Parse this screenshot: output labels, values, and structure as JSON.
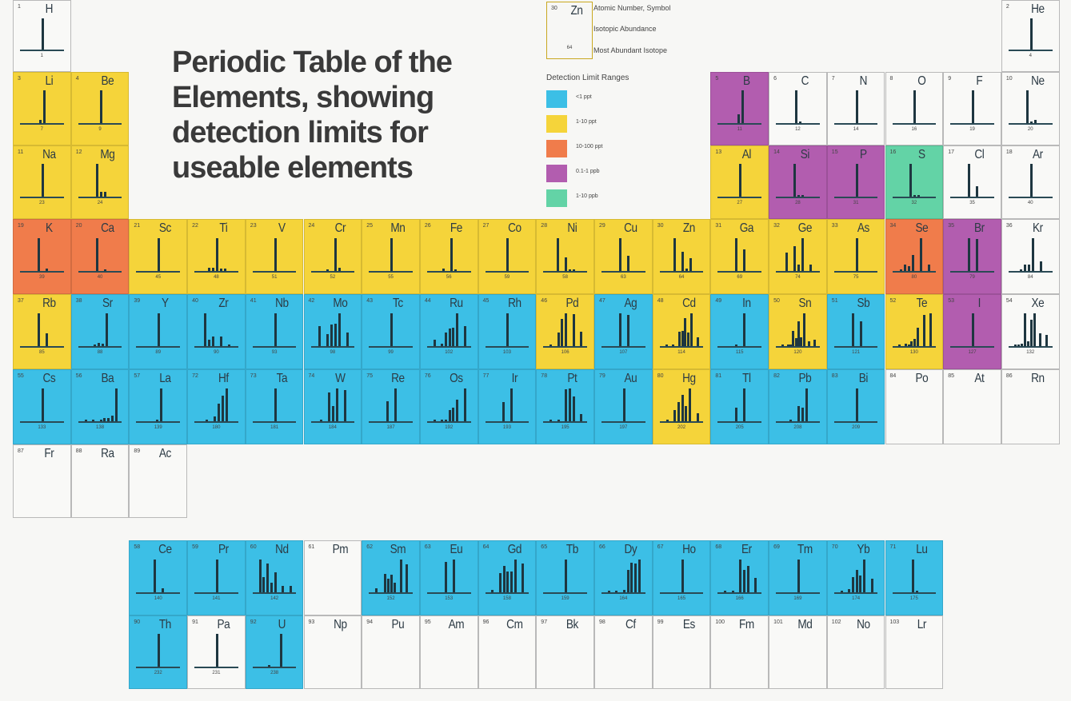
{
  "title": "Periodic Table of the Elements, showing detection limits for useable elements",
  "legend": {
    "key_example": {
      "number": "30",
      "symbol": "Zn",
      "mass": "64",
      "color": "y"
    },
    "key_labels": [
      "Atomic Number, Symbol",
      "Isotopic Abundance",
      "Most Abundant Isotope"
    ],
    "ranges_title": "Detection Limit Ranges",
    "ranges": [
      {
        "label": "<1 ppt",
        "color": "#3cbfe6"
      },
      {
        "label": "1-10 ppt",
        "color": "#f5d43a"
      },
      {
        "label": "10-100 ppt",
        "color": "#f07c4b"
      },
      {
        "label": "0.1-1 ppb",
        "color": "#b25daf"
      },
      {
        "label": "1-10 ppb",
        "color": "#63d3a6"
      }
    ]
  },
  "colors": {
    "b": "#3cbfe6",
    "y": "#f5d43a",
    "o": "#f07c4b",
    "p": "#b25daf",
    "g": "#63d3a6",
    "w": "#f9f9f7"
  },
  "elements": [
    {
      "z": "1",
      "symbol": "H",
      "mass": "1",
      "c": "w",
      "p": 1,
      "g": 1,
      "peaks": [
        1
      ]
    },
    {
      "z": "2",
      "symbol": "He",
      "mass": "4",
      "c": "w",
      "p": 1,
      "g": 18,
      "peaks": [
        1
      ]
    },
    {
      "z": "3",
      "symbol": "Li",
      "mass": "7",
      "c": "y",
      "p": 2,
      "g": 1,
      "peaks": [
        0.1,
        1
      ]
    },
    {
      "z": "4",
      "symbol": "Be",
      "mass": "9",
      "c": "y",
      "p": 2,
      "g": 2,
      "peaks": [
        1
      ]
    },
    {
      "z": "5",
      "symbol": "B",
      "mass": "11",
      "c": "p",
      "p": 2,
      "g": 13,
      "peaks": [
        0.25,
        1
      ]
    },
    {
      "z": "6",
      "symbol": "C",
      "mass": "12",
      "c": "w",
      "p": 2,
      "g": 14,
      "peaks": [
        1,
        0.02
      ]
    },
    {
      "z": "7",
      "symbol": "N",
      "mass": "14",
      "c": "w",
      "p": 2,
      "g": 15,
      "peaks": [
        1
      ]
    },
    {
      "z": "8",
      "symbol": "O",
      "mass": "16",
      "c": "w",
      "p": 2,
      "g": 16,
      "peaks": [
        1
      ]
    },
    {
      "z": "9",
      "symbol": "F",
      "mass": "19",
      "c": "w",
      "p": 2,
      "g": 17,
      "peaks": [
        1
      ]
    },
    {
      "z": "10",
      "symbol": "Ne",
      "mass": "20",
      "c": "w",
      "p": 2,
      "g": 18,
      "peaks": [
        1,
        0.02,
        0.1
      ]
    },
    {
      "z": "11",
      "symbol": "Na",
      "mass": "23",
      "c": "y",
      "p": 3,
      "g": 1,
      "peaks": [
        1
      ]
    },
    {
      "z": "12",
      "symbol": "Mg",
      "mass": "24",
      "c": "y",
      "p": 3,
      "g": 2,
      "peaks": [
        1,
        0.13,
        0.14
      ]
    },
    {
      "z": "13",
      "symbol": "Al",
      "mass": "27",
      "c": "y",
      "p": 3,
      "g": 13,
      "peaks": [
        1
      ]
    },
    {
      "z": "14",
      "symbol": "Si",
      "mass": "28",
      "c": "p",
      "p": 3,
      "g": 14,
      "peaks": [
        1,
        0.05,
        0.03
      ]
    },
    {
      "z": "15",
      "symbol": "P",
      "mass": "31",
      "c": "p",
      "p": 3,
      "g": 15,
      "peaks": [
        1
      ]
    },
    {
      "z": "16",
      "symbol": "S",
      "mass": "32",
      "c": "g",
      "p": 3,
      "g": 16,
      "peaks": [
        1,
        0.02,
        0.05
      ]
    },
    {
      "z": "17",
      "symbol": "Cl",
      "mass": "35",
      "c": "w",
      "p": 3,
      "g": 17,
      "peaks": [
        1,
        0,
        0.32
      ]
    },
    {
      "z": "18",
      "symbol": "Ar",
      "mass": "40",
      "c": "w",
      "p": 3,
      "g": 18,
      "peaks": [
        1
      ]
    },
    {
      "z": "19",
      "symbol": "K",
      "mass": "39",
      "c": "o",
      "p": 4,
      "g": 1,
      "peaks": [
        1,
        0,
        0.07
      ]
    },
    {
      "z": "20",
      "symbol": "Ca",
      "mass": "40",
      "c": "o",
      "p": 4,
      "g": 2,
      "peaks": [
        1,
        0,
        0.02
      ]
    },
    {
      "z": "21",
      "symbol": "Sc",
      "mass": "45",
      "c": "y",
      "p": 4,
      "g": 3,
      "peaks": [
        1
      ]
    },
    {
      "z": "22",
      "symbol": "Ti",
      "mass": "48",
      "c": "y",
      "p": 4,
      "g": 4,
      "peaks": [
        0.1,
        0.1,
        1,
        0.08,
        0.07
      ]
    },
    {
      "z": "23",
      "symbol": "V",
      "mass": "51",
      "c": "y",
      "p": 4,
      "g": 5,
      "peaks": [
        1
      ]
    },
    {
      "z": "24",
      "symbol": "Cr",
      "mass": "52",
      "c": "y",
      "p": 4,
      "g": 6,
      "peaks": [
        0.05,
        0,
        1,
        0.1
      ]
    },
    {
      "z": "25",
      "symbol": "Mn",
      "mass": "55",
      "c": "y",
      "p": 4,
      "g": 7,
      "peaks": [
        1
      ]
    },
    {
      "z": "26",
      "symbol": "Fe",
      "mass": "56",
      "c": "y",
      "p": 4,
      "g": 8,
      "peaks": [
        0.06,
        0,
        1,
        0.02
      ]
    },
    {
      "z": "27",
      "symbol": "Co",
      "mass": "59",
      "c": "y",
      "p": 4,
      "g": 9,
      "peaks": [
        1
      ]
    },
    {
      "z": "28",
      "symbol": "Ni",
      "mass": "58",
      "c": "y",
      "p": 4,
      "g": 10,
      "peaks": [
        1,
        0,
        0.4,
        0.02,
        0.05
      ]
    },
    {
      "z": "29",
      "symbol": "Cu",
      "mass": "63",
      "c": "y",
      "p": 4,
      "g": 11,
      "peaks": [
        1,
        0,
        0.45
      ]
    },
    {
      "z": "30",
      "symbol": "Zn",
      "mass": "64",
      "c": "y",
      "p": 4,
      "g": 12,
      "peaks": [
        1,
        0,
        0.57,
        0.08,
        0.38
      ]
    },
    {
      "z": "31",
      "symbol": "Ga",
      "mass": "69",
      "c": "y",
      "p": 4,
      "g": 13,
      "peaks": [
        1,
        0,
        0.66
      ]
    },
    {
      "z": "32",
      "symbol": "Ge",
      "mass": "74",
      "c": "y",
      "p": 4,
      "g": 14,
      "peaks": [
        0.55,
        0,
        0.75,
        0.2,
        1,
        0,
        0.2
      ]
    },
    {
      "z": "33",
      "symbol": "As",
      "mass": "75",
      "c": "y",
      "p": 4,
      "g": 15,
      "peaks": [
        1
      ]
    },
    {
      "z": "34",
      "symbol": "Se",
      "mass": "80",
      "c": "o",
      "p": 4,
      "g": 16,
      "peaks": [
        0.02,
        0.18,
        0.15,
        0.47,
        0,
        1,
        0,
        0.18
      ]
    },
    {
      "z": "35",
      "symbol": "Br",
      "mass": "79",
      "c": "p",
      "p": 4,
      "g": 17,
      "peaks": [
        1,
        0,
        0.97
      ]
    },
    {
      "z": "36",
      "symbol": "Kr",
      "mass": "84",
      "c": "w",
      "p": 4,
      "g": 18,
      "peaks": [
        0.02,
        0.2,
        0.2,
        1,
        0,
        0.3
      ]
    },
    {
      "z": "37",
      "symbol": "Rb",
      "mass": "85",
      "c": "y",
      "p": 5,
      "g": 1,
      "peaks": [
        1,
        0,
        0.38
      ]
    },
    {
      "z": "38",
      "symbol": "Sr",
      "mass": "88",
      "c": "b",
      "p": 5,
      "g": 2,
      "peaks": [
        0.01,
        0.1,
        0.08,
        1
      ]
    },
    {
      "z": "39",
      "symbol": "Y",
      "mass": "89",
      "c": "b",
      "p": 5,
      "g": 3,
      "peaks": [
        1
      ]
    },
    {
      "z": "40",
      "symbol": "Zr",
      "mass": "90",
      "c": "b",
      "p": 5,
      "g": 4,
      "peaks": [
        1,
        0.2,
        0.3,
        0,
        0.3,
        0,
        0.05
      ]
    },
    {
      "z": "41",
      "symbol": "Nb",
      "mass": "93",
      "c": "b",
      "p": 5,
      "g": 5,
      "peaks": [
        1
      ]
    },
    {
      "z": "42",
      "symbol": "Mo",
      "mass": "98",
      "c": "b",
      "p": 5,
      "g": 6,
      "peaks": [
        0.6,
        0,
        0.37,
        0.65,
        0.68,
        1,
        0,
        0.4
      ]
    },
    {
      "z": "43",
      "symbol": "Tc",
      "mass": "99",
      "c": "b",
      "p": 5,
      "g": 7,
      "peaks": [
        1
      ]
    },
    {
      "z": "44",
      "symbol": "Ru",
      "mass": "102",
      "c": "b",
      "p": 5,
      "g": 8,
      "peaks": [
        0.18,
        0,
        0.06,
        0.4,
        0.54,
        0.55,
        1,
        0,
        0.6
      ]
    },
    {
      "z": "45",
      "symbol": "Rh",
      "mass": "103",
      "c": "b",
      "p": 5,
      "g": 9,
      "peaks": [
        1
      ]
    },
    {
      "z": "46",
      "symbol": "Pd",
      "mass": "106",
      "c": "y",
      "p": 5,
      "g": 10,
      "peaks": [
        0.04,
        0,
        0.4,
        0.82,
        1,
        0,
        0.97,
        0,
        0.43
      ]
    },
    {
      "z": "47",
      "symbol": "Ag",
      "mass": "107",
      "c": "b",
      "p": 5,
      "g": 11,
      "peaks": [
        1,
        0,
        0.93
      ]
    },
    {
      "z": "48",
      "symbol": "Cd",
      "mass": "114",
      "c": "y",
      "p": 5,
      "g": 12,
      "peaks": [
        0.04,
        0,
        0.04,
        0,
        0.43,
        0.45,
        0.84,
        0.42,
        1,
        0,
        0.26
      ]
    },
    {
      "z": "49",
      "symbol": "In",
      "mass": "115",
      "c": "b",
      "p": 5,
      "g": 13,
      "peaks": [
        0.04,
        0,
        1
      ]
    },
    {
      "z": "50",
      "symbol": "Sn",
      "mass": "120",
      "c": "y",
      "p": 5,
      "g": 14,
      "peaks": [
        0.03,
        0,
        0.02,
        0.01,
        0.45,
        0.24,
        0.75,
        0.27,
        1,
        0,
        0.14,
        0,
        0.18
      ]
    },
    {
      "z": "51",
      "symbol": "Sb",
      "mass": "121",
      "c": "b",
      "p": 5,
      "g": 15,
      "peaks": [
        1,
        0,
        0.75
      ]
    },
    {
      "z": "52",
      "symbol": "Te",
      "mass": "130",
      "c": "y",
      "p": 5,
      "g": 16,
      "peaks": [
        0.01,
        0,
        0.07,
        0.02,
        0.14,
        0.21,
        0.56,
        0,
        0.93,
        0,
        1
      ]
    },
    {
      "z": "53",
      "symbol": "I",
      "mass": "127",
      "c": "p",
      "p": 5,
      "g": 17,
      "peaks": [
        1
      ]
    },
    {
      "z": "54",
      "symbol": "Xe",
      "mass": "132",
      "c": "w",
      "p": 5,
      "g": 18,
      "peaks": [
        0.02,
        0.02,
        0.07,
        0.98,
        0.15,
        0.79,
        1,
        0,
        0.39,
        0,
        0.33
      ]
    },
    {
      "z": "55",
      "symbol": "Cs",
      "mass": "133",
      "c": "b",
      "p": 6,
      "g": 1,
      "peaks": [
        1
      ]
    },
    {
      "z": "56",
      "symbol": "Ba",
      "mass": "138",
      "c": "b",
      "p": 6,
      "g": 2,
      "peaks": [
        0.01,
        0,
        0.01,
        0,
        0.03,
        0.09,
        0.1,
        0.16,
        1
      ]
    },
    {
      "z": "57",
      "symbol": "La",
      "mass": "139",
      "c": "b",
      "p": 6,
      "g": 3,
      "peaks": [
        0.01,
        1
      ]
    },
    {
      "z": "72",
      "symbol": "Hf",
      "mass": "180",
      "c": "b",
      "p": 6,
      "g": 4,
      "peaks": [
        0.01,
        0,
        0.15,
        0.52,
        0.77,
        1
      ]
    },
    {
      "z": "73",
      "symbol": "Ta",
      "mass": "181",
      "c": "b",
      "p": 6,
      "g": 5,
      "peaks": [
        1
      ]
    },
    {
      "z": "74",
      "symbol": "W",
      "mass": "184",
      "c": "b",
      "p": 6,
      "g": 6,
      "peaks": [
        0.01,
        0,
        0.86,
        0.46,
        1,
        0,
        0.93
      ]
    },
    {
      "z": "75",
      "symbol": "Re",
      "mass": "187",
      "c": "b",
      "p": 6,
      "g": 7,
      "peaks": [
        0.6,
        0,
        1
      ]
    },
    {
      "z": "76",
      "symbol": "Os",
      "mass": "192",
      "c": "b",
      "p": 6,
      "g": 8,
      "peaks": [
        0.01,
        0,
        0.04,
        0.04,
        0.33,
        0.4,
        0.65,
        0,
        1
      ]
    },
    {
      "z": "77",
      "symbol": "Ir",
      "mass": "193",
      "c": "b",
      "p": 6,
      "g": 9,
      "peaks": [
        0.59,
        0,
        1
      ]
    },
    {
      "z": "78",
      "symbol": "Pt",
      "mass": "195",
      "c": "b",
      "p": 6,
      "g": 10,
      "peaks": [
        0.01,
        0,
        0.02,
        0,
        0.97,
        1,
        0.75,
        0,
        0.22
      ]
    },
    {
      "z": "79",
      "symbol": "Au",
      "mass": "197",
      "c": "b",
      "p": 6,
      "g": 11,
      "peaks": [
        1
      ]
    },
    {
      "z": "80",
      "symbol": "Hg",
      "mass": "202",
      "c": "y",
      "p": 6,
      "g": 12,
      "peaks": [
        0.01,
        0,
        0.34,
        0.57,
        0.79,
        0.45,
        1,
        0,
        0.23
      ]
    },
    {
      "z": "81",
      "symbol": "Tl",
      "mass": "205",
      "c": "b",
      "p": 6,
      "g": 13,
      "peaks": [
        0.42,
        0,
        1
      ]
    },
    {
      "z": "82",
      "symbol": "Pb",
      "mass": "208",
      "c": "b",
      "p": 6,
      "g": 14,
      "peaks": [
        0.03,
        0,
        0.46,
        0.4,
        1
      ]
    },
    {
      "z": "83",
      "symbol": "Bi",
      "mass": "209",
      "c": "b",
      "p": 6,
      "g": 15,
      "peaks": [
        1
      ]
    },
    {
      "z": "84",
      "symbol": "Po",
      "mass": "",
      "c": "w",
      "p": 6,
      "g": 16,
      "peaks": []
    },
    {
      "z": "85",
      "symbol": "At",
      "mass": "",
      "c": "w",
      "p": 6,
      "g": 17,
      "peaks": []
    },
    {
      "z": "86",
      "symbol": "Rn",
      "mass": "",
      "c": "w",
      "p": 6,
      "g": 18,
      "peaks": []
    },
    {
      "z": "87",
      "symbol": "Fr",
      "mass": "",
      "c": "w",
      "p": 7,
      "g": 1,
      "peaks": []
    },
    {
      "z": "88",
      "symbol": "Ra",
      "mass": "",
      "c": "w",
      "p": 7,
      "g": 2,
      "peaks": []
    },
    {
      "z": "89",
      "symbol": "Ac",
      "mass": "",
      "c": "w",
      "p": 7,
      "g": 3,
      "peaks": []
    },
    {
      "z": "58",
      "symbol": "Ce",
      "mass": "140",
      "c": "b",
      "p": 8,
      "g": 3,
      "peaks": [
        1,
        0,
        0.13
      ]
    },
    {
      "z": "59",
      "symbol": "Pr",
      "mass": "141",
      "c": "b",
      "p": 8,
      "g": 4,
      "peaks": [
        1
      ]
    },
    {
      "z": "60",
      "symbol": "Nd",
      "mass": "142",
      "c": "b",
      "p": 8,
      "g": 5,
      "peaks": [
        1,
        0.45,
        0.88,
        0.3,
        0.6,
        0,
        0.2,
        0,
        0.2
      ]
    },
    {
      "z": "61",
      "symbol": "Pm",
      "mass": "",
      "c": "w",
      "p": 8,
      "g": 6,
      "peaks": []
    },
    {
      "z": "62",
      "symbol": "Sm",
      "mass": "152",
      "c": "b",
      "p": 8,
      "g": 7,
      "peaks": [
        0.12,
        0,
        0,
        0.56,
        0.42,
        0.52,
        0.28,
        0,
        1,
        0,
        0.85
      ]
    },
    {
      "z": "63",
      "symbol": "Eu",
      "mass": "153",
      "c": "b",
      "p": 8,
      "g": 8,
      "peaks": [
        0.92,
        0,
        1
      ]
    },
    {
      "z": "64",
      "symbol": "Gd",
      "mass": "158",
      "c": "b",
      "p": 8,
      "g": 9,
      "peaks": [
        0.08,
        0,
        0.59,
        0.8,
        0.63,
        0.63,
        1,
        0,
        0.88
      ]
    },
    {
      "z": "65",
      "symbol": "Tb",
      "mass": "159",
      "c": "b",
      "p": 8,
      "g": 10,
      "peaks": [
        1
      ]
    },
    {
      "z": "66",
      "symbol": "Dy",
      "mass": "164",
      "c": "b",
      "p": 8,
      "g": 11,
      "peaks": [
        0.01,
        0,
        0.01,
        0,
        0.08,
        0.67,
        0.9,
        0.88,
        1
      ]
    },
    {
      "z": "67",
      "symbol": "Ho",
      "mass": "165",
      "c": "b",
      "p": 8,
      "g": 12,
      "peaks": [
        1
      ]
    },
    {
      "z": "68",
      "symbol": "Er",
      "mass": "166",
      "c": "b",
      "p": 8,
      "g": 13,
      "peaks": [
        0.01,
        0,
        0.05,
        0,
        1,
        0.68,
        0.8,
        0,
        0.44
      ]
    },
    {
      "z": "69",
      "symbol": "Tm",
      "mass": "169",
      "c": "b",
      "p": 8,
      "g": 14,
      "peaks": [
        1
      ]
    },
    {
      "z": "70",
      "symbol": "Yb",
      "mass": "174",
      "c": "b",
      "p": 8,
      "g": 15,
      "peaks": [
        0.01,
        0,
        0.1,
        0.45,
        0.68,
        0.5,
        1,
        0,
        0.4
      ]
    },
    {
      "z": "71",
      "symbol": "Lu",
      "mass": "175",
      "c": "b",
      "p": 8,
      "g": 16,
      "peaks": [
        1,
        0.03
      ]
    },
    {
      "z": "90",
      "symbol": "Th",
      "mass": "232",
      "c": "b",
      "p": 9,
      "g": 3,
      "peaks": [
        1
      ]
    },
    {
      "z": "91",
      "symbol": "Pa",
      "mass": "231",
      "c": "w",
      "p": 9,
      "g": 4,
      "peaks": [
        1
      ]
    },
    {
      "z": "92",
      "symbol": "U",
      "mass": "238",
      "c": "b",
      "p": 9,
      "g": 5,
      "peaks": [
        0.01,
        0,
        0,
        1
      ]
    },
    {
      "z": "93",
      "symbol": "Np",
      "mass": "",
      "c": "w",
      "p": 9,
      "g": 6,
      "peaks": []
    },
    {
      "z": "94",
      "symbol": "Pu",
      "mass": "",
      "c": "w",
      "p": 9,
      "g": 7,
      "peaks": []
    },
    {
      "z": "95",
      "symbol": "Am",
      "mass": "",
      "c": "w",
      "p": 9,
      "g": 8,
      "peaks": []
    },
    {
      "z": "96",
      "symbol": "Cm",
      "mass": "",
      "c": "w",
      "p": 9,
      "g": 9,
      "peaks": []
    },
    {
      "z": "97",
      "symbol": "Bk",
      "mass": "",
      "c": "w",
      "p": 9,
      "g": 10,
      "peaks": []
    },
    {
      "z": "98",
      "symbol": "Cf",
      "mass": "",
      "c": "w",
      "p": 9,
      "g": 11,
      "peaks": []
    },
    {
      "z": "99",
      "symbol": "Es",
      "mass": "",
      "c": "w",
      "p": 9,
      "g": 12,
      "peaks": []
    },
    {
      "z": "100",
      "symbol": "Fm",
      "mass": "",
      "c": "w",
      "p": 9,
      "g": 13,
      "peaks": []
    },
    {
      "z": "101",
      "symbol": "Md",
      "mass": "",
      "c": "w",
      "p": 9,
      "g": 14,
      "peaks": []
    },
    {
      "z": "102",
      "symbol": "No",
      "mass": "",
      "c": "w",
      "p": 9,
      "g": 15,
      "peaks": []
    },
    {
      "z": "103",
      "symbol": "Lr",
      "mass": "",
      "c": "w",
      "p": 9,
      "g": 16,
      "peaks": []
    }
  ]
}
